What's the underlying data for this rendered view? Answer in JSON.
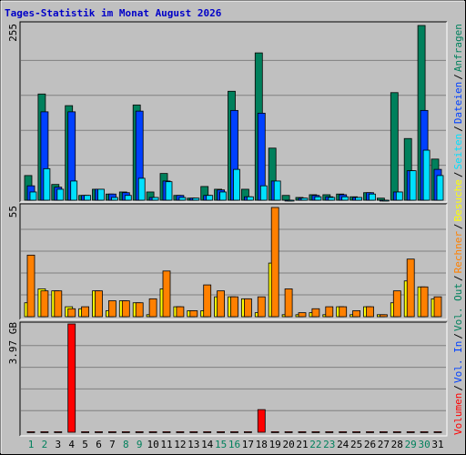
{
  "chart_data": {
    "type": "bar",
    "title": "Tages-Statistik im Monat August 2026",
    "title_color": "#0000c8",
    "categories": [
      "1",
      "2",
      "3",
      "4",
      "5",
      "6",
      "7",
      "8",
      "9",
      "10",
      "11",
      "12",
      "13",
      "14",
      "15",
      "16",
      "17",
      "18",
      "19",
      "20",
      "21",
      "22",
      "23",
      "24",
      "25",
      "26",
      "27",
      "28",
      "29",
      "30",
      "31"
    ],
    "weekend": [
      true,
      true,
      false,
      false,
      false,
      false,
      false,
      true,
      true,
      false,
      false,
      false,
      false,
      false,
      true,
      true,
      false,
      false,
      false,
      false,
      false,
      true,
      true,
      false,
      false,
      false,
      false,
      false,
      true,
      true,
      false
    ],
    "weekend_color": "#00805c",
    "legend_separator": "/",
    "grid_divisions": 5,
    "panels": [
      {
        "max_label": "255",
        "ylim": [
          0,
          255
        ],
        "series": [
          {
            "name": "Anfragen",
            "color": "#00805c",
            "values": [
              36,
              155,
              23,
              138,
              7,
              16,
              9,
              12,
              139,
              12,
              39,
              7,
              3,
              20,
              16,
              159,
              16,
              215,
              76,
              7,
              4,
              8,
              8,
              9,
              5,
              11,
              3,
              157,
              90,
              255,
              60
            ]
          },
          {
            "name": "Dateien",
            "color": "#0040ff",
            "values": [
              21,
              129,
              19,
              129,
              7,
              16,
              9,
              11,
              130,
              4,
              28,
              7,
              3,
              7,
              15,
              131,
              5,
              127,
              28,
              0,
              3,
              7,
              5,
              8,
              4,
              11,
              0,
              12,
              43,
              131,
              45
            ]
          },
          {
            "name": "Seiten",
            "color": "#00e0ff",
            "values": [
              12,
              46,
              16,
              28,
              7,
              16,
              4,
              7,
              32,
              4,
              27,
              4,
              3,
              7,
              12,
              45,
              5,
              21,
              28,
              0,
              3,
              5,
              4,
              5,
              4,
              9,
              0,
              12,
              43,
              73,
              36
            ]
          }
        ]
      },
      {
        "max_label": "55",
        "ylim": [
          0,
          55
        ],
        "series": [
          {
            "name": "Besuche",
            "color": "#ffff00",
            "values": [
              7,
              14,
              13,
              5,
              4,
              13,
              3,
              8,
              7,
              1,
              14,
              5,
              3,
              3,
              10,
              10,
              9,
              2,
              27,
              1,
              1,
              2,
              1,
              5,
              1,
              5,
              1,
              7,
              18,
              15,
              9
            ]
          },
          {
            "name": "Rechner",
            "color": "#ff8000",
            "values": [
              31,
              13,
              13,
              4,
              5,
              13,
              8,
              8,
              7,
              9,
              23,
              5,
              3,
              16,
              13,
              10,
              9,
              10,
              55,
              14,
              2,
              4,
              5,
              5,
              3,
              5,
              1,
              13,
              29,
              15,
              10
            ]
          }
        ]
      },
      {
        "max_label": "3.97 GB",
        "ylim": [
          0,
          3.97
        ],
        "series": [
          {
            "name": "Volumen",
            "color": "#ff0000",
            "values": [
              0.02,
              0.02,
              0.02,
              3.97,
              0.02,
              0.02,
              0.02,
              0.02,
              0.02,
              0.02,
              0.02,
              0.02,
              0.02,
              0.02,
              0.02,
              0.02,
              0.02,
              0.83,
              0.02,
              0.02,
              0.02,
              0.02,
              0.02,
              0.02,
              0.02,
              0.02,
              0.02,
              0.02,
              0.02,
              0.02,
              0.02
            ]
          }
        ],
        "legend_extra": [
          {
            "name": "Vol. In",
            "color": "#0040ff"
          },
          {
            "name": "Vol. Out",
            "color": "#00805c"
          }
        ]
      }
    ]
  }
}
